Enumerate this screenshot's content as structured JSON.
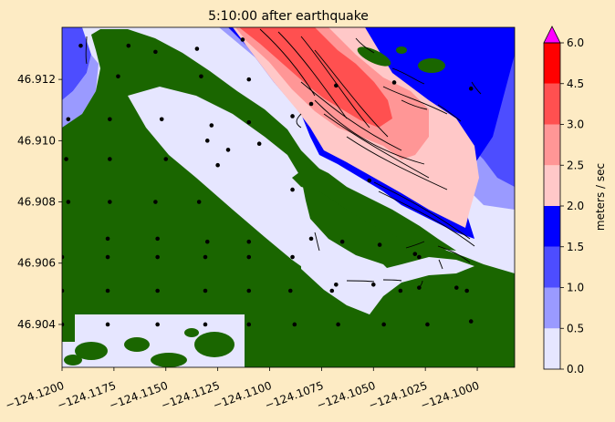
{
  "chart_data": {
    "type": "heatmap",
    "title": "5:10:00 after earthquake",
    "xlabel": "",
    "ylabel": "",
    "xlim": [
      -124.12,
      -124.0982
    ],
    "ylim": [
      46.9026,
      46.9137
    ],
    "x_ticks": [
      -124.12,
      -124.1175,
      -124.115,
      -124.1125,
      -124.11,
      -124.1075,
      -124.105,
      -124.1025,
      -124.1
    ],
    "x_tick_labels": [
      "−124.1200",
      "−124.1175",
      "−124.1150",
      "−124.1125",
      "−124.1100",
      "−124.1075",
      "−124.1050",
      "−124.1025",
      "−124.1000"
    ],
    "y_ticks": [
      46.904,
      46.906,
      46.908,
      46.91,
      46.912
    ],
    "y_tick_labels": [
      "46.904",
      "46.906",
      "46.908",
      "46.910",
      "46.912"
    ],
    "colorbar": {
      "label": "meters / sec",
      "levels": [
        0.0,
        0.5,
        1.0,
        1.5,
        2.0,
        2.5,
        3.0,
        4.5,
        6.0
      ],
      "tick_labels": [
        "0.0",
        "0.5",
        "1.0",
        "1.5",
        "2.0",
        "2.5",
        "3.0",
        "4.5",
        "6.0"
      ],
      "colors": [
        "#e6e6ff",
        "#9a9aff",
        "#4d4dff",
        "#0000ff",
        "#ffc8c8",
        "#ff9696",
        "#ff5050",
        "#ff0000"
      ],
      "extend_color": "#ff00ff",
      "extend": "max"
    },
    "colors": {
      "land": "#1a6600",
      "background": "#fdebc4"
    },
    "points": [
      [
        -124.1191,
        46.9131
      ],
      [
        -124.1168,
        46.9131
      ],
      [
        -124.1155,
        46.9129
      ],
      [
        -124.1135,
        46.913
      ],
      [
        -124.1113,
        46.9133
      ],
      [
        -124.1173,
        46.9121
      ],
      [
        -124.1133,
        46.9121
      ],
      [
        -124.111,
        46.912
      ],
      [
        -124.1068,
        46.9118
      ],
      [
        -124.104,
        46.9119
      ],
      [
        -124.1003,
        46.9117
      ],
      [
        -124.1197,
        46.9107
      ],
      [
        -124.1177,
        46.9107
      ],
      [
        -124.1152,
        46.9107
      ],
      [
        -124.1128,
        46.9105
      ],
      [
        -124.111,
        46.9106
      ],
      [
        -124.1089,
        46.9108
      ],
      [
        -124.108,
        46.9112
      ],
      [
        -124.113,
        46.91
      ],
      [
        -124.112,
        46.9097
      ],
      [
        -124.1105,
        46.9099
      ],
      [
        -124.1198,
        46.9094
      ],
      [
        -124.1177,
        46.9094
      ],
      [
        -124.115,
        46.9094
      ],
      [
        -124.1125,
        46.9092
      ],
      [
        -124.1197,
        46.908
      ],
      [
        -124.1177,
        46.908
      ],
      [
        -124.1155,
        46.908
      ],
      [
        -124.1134,
        46.908
      ],
      [
        -124.1089,
        46.9084
      ],
      [
        -124.1052,
        46.9087
      ],
      [
        -124.1178,
        46.9068
      ],
      [
        -124.1154,
        46.9068
      ],
      [
        -124.113,
        46.9067
      ],
      [
        -124.111,
        46.9067
      ],
      [
        -124.108,
        46.9068
      ],
      [
        -124.1065,
        46.9067
      ],
      [
        -124.1047,
        46.9066
      ],
      [
        -124.103,
        46.9063
      ],
      [
        -124.12,
        46.9062
      ],
      [
        -124.1178,
        46.9062
      ],
      [
        -124.1154,
        46.9062
      ],
      [
        -124.1131,
        46.9062
      ],
      [
        -124.111,
        46.9062
      ],
      [
        -124.1089,
        46.9062
      ],
      [
        -124.1028,
        46.9062
      ],
      [
        -124.1068,
        46.9053
      ],
      [
        -124.105,
        46.9053
      ],
      [
        -124.1028,
        46.9052
      ],
      [
        -124.101,
        46.9052
      ],
      [
        -124.12,
        46.9051
      ],
      [
        -124.1178,
        46.9051
      ],
      [
        -124.1154,
        46.9051
      ],
      [
        -124.1131,
        46.9051
      ],
      [
        -124.111,
        46.9051
      ],
      [
        -124.109,
        46.9051
      ],
      [
        -124.107,
        46.9051
      ],
      [
        -124.1037,
        46.9051
      ],
      [
        -124.1005,
        46.9051
      ],
      [
        -124.12,
        46.904
      ],
      [
        -124.1178,
        46.904
      ],
      [
        -124.1154,
        46.904
      ],
      [
        -124.1131,
        46.904
      ],
      [
        -124.111,
        46.904
      ],
      [
        -124.1088,
        46.904
      ],
      [
        -124.1067,
        46.904
      ],
      [
        -124.1045,
        46.904
      ],
      [
        -124.1024,
        46.904
      ],
      [
        -124.1003,
        46.9041
      ]
    ]
  }
}
